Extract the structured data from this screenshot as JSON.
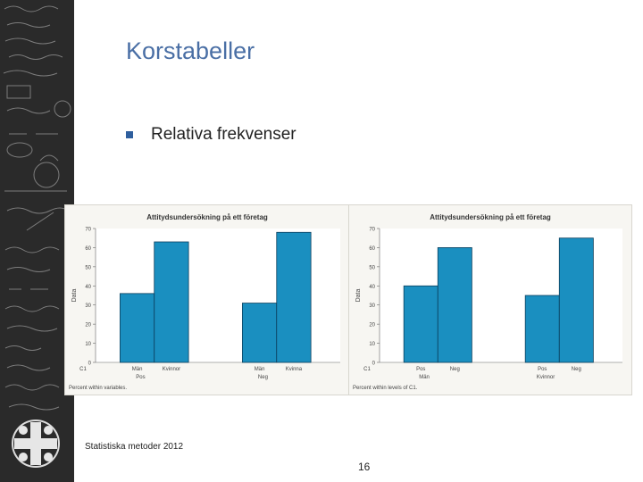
{
  "slide": {
    "title": "Korstabeller",
    "bullet": "Relativa frekvenser",
    "footer": "Statistiska metoder 2012",
    "page_number": "16"
  },
  "colors": {
    "title": "#4a6fa5",
    "bar": "#1a8fc0",
    "bar_stroke": "#0b3e5c",
    "sidebar": "#2a2a2a"
  },
  "icons": [
    "university-logo-icon",
    "chalkboard-background-icon",
    "bullet-square-icon"
  ],
  "chart_data": [
    {
      "type": "bar",
      "title": "Attitydsundersökning på ett företag",
      "ylabel": "Data",
      "ylim": [
        0,
        70
      ],
      "yticks": [
        0,
        10,
        20,
        30,
        40,
        50,
        60,
        70
      ],
      "y_origin_label": "C1",
      "groups": [
        "Pos",
        "Neg"
      ],
      "categories": [
        "Män",
        "Kvinnor",
        "Män",
        "Kvinnor"
      ],
      "category_labels": [
        "Män",
        "Kvinnor",
        "Män",
        "Kvinna"
      ],
      "values": [
        36,
        63,
        31,
        68
      ],
      "note": "Percent within variables."
    },
    {
      "type": "bar",
      "title": "Attitydsundersökning på ett företag",
      "ylabel": "Data",
      "ylim": [
        0,
        70
      ],
      "yticks": [
        0,
        10,
        20,
        30,
        40,
        50,
        60,
        70
      ],
      "y_origin_label": "C1",
      "groups": [
        "Män",
        "Kvinnor"
      ],
      "categories": [
        "Pos",
        "Neg",
        "Pos",
        "Neg"
      ],
      "values": [
        40,
        60,
        35,
        65
      ],
      "note": "Percent within levels of C1."
    }
  ]
}
